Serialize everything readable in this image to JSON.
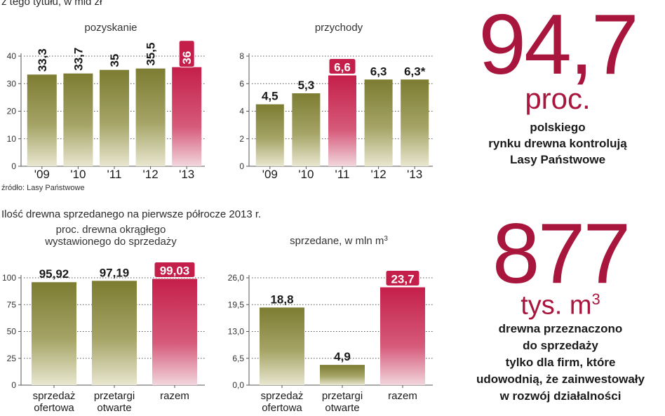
{
  "texts": {
    "top_line": "z tego tytułu, w mld zł",
    "source": "źródło: Lasy Państwowe",
    "section2": "Ilość drewna sprzedanego na pierwsze półrocze 2013 r."
  },
  "stats": [
    {
      "number": "94,7",
      "unit": "proc.",
      "lines": [
        "polskiego",
        "rynku drewna kontrolują",
        "Lasy Państwowe"
      ]
    },
    {
      "number": "877",
      "unit": "tys. m",
      "unit_sup": "3",
      "lines": [
        "drewna przeznaczono",
        "do sprzedaży",
        "tylko dla firm, które",
        "udowodnią, że zainwestowały",
        "w rozwój działalności"
      ]
    }
  ],
  "colors": {
    "green": "#8a8a3c",
    "highlight": "#c8204e",
    "accent_text": "#a8163e",
    "grid": "#555555"
  },
  "chart_data": [
    {
      "id": "pozyskanie",
      "type": "bar",
      "title": "pozyskanie",
      "categories": [
        "'09",
        "'10",
        "'11",
        "'12",
        "'13"
      ],
      "values": [
        33.3,
        33.7,
        35,
        35.5,
        36
      ],
      "labels": [
        "33,3",
        "33,7",
        "35",
        "35,5",
        "36"
      ],
      "highlight": [
        4
      ],
      "ylim": [
        0,
        40
      ],
      "yticks": [
        0,
        10,
        20,
        30,
        40
      ],
      "ytick_labels": [
        "0",
        "10",
        "20",
        "30",
        "40"
      ],
      "vertical_labels": true,
      "grid": true
    },
    {
      "id": "przychody",
      "type": "bar",
      "title": "przychody",
      "categories": [
        "'09",
        "'10",
        "'11",
        "'12",
        "'13"
      ],
      "values": [
        4.5,
        5.3,
        6.6,
        6.3,
        6.3
      ],
      "labels": [
        "4,5",
        "5,3",
        "6,6",
        "6,3",
        "6,3*"
      ],
      "highlight": [
        2
      ],
      "ylim": [
        0,
        8
      ],
      "yticks": [
        0,
        2,
        4,
        6,
        8
      ],
      "ytick_labels": [
        "0",
        "2",
        "4",
        "6",
        "8"
      ],
      "vertical_labels": false,
      "grid": true
    },
    {
      "id": "procent",
      "type": "bar",
      "title_lines": [
        "proc. drewna okrągłego",
        "wystawionego do sprzedaży"
      ],
      "categories": [
        [
          "sprzedaż",
          "ofertowa"
        ],
        [
          "przetargi",
          "otwarte"
        ],
        [
          "razem"
        ]
      ],
      "values": [
        95.92,
        97.19,
        99.03
      ],
      "labels": [
        "95,92",
        "97,19",
        "99,03"
      ],
      "highlight": [
        2
      ],
      "ylim": [
        0,
        100
      ],
      "yticks": [
        0,
        25,
        50,
        75,
        100
      ],
      "ytick_labels": [
        "0",
        "25",
        "50",
        "75",
        "100"
      ],
      "vertical_labels": false,
      "grid": true
    },
    {
      "id": "sprzedane",
      "type": "bar",
      "title": "sprzedane, w mln m",
      "title_sup": "3",
      "categories": [
        [
          "sprzedaż",
          "ofertowa"
        ],
        [
          "przetargi",
          "otwarte"
        ],
        [
          "razem"
        ]
      ],
      "values": [
        18.8,
        4.9,
        23.7
      ],
      "labels": [
        "18,8",
        "4,9",
        "23,7"
      ],
      "highlight": [
        2
      ],
      "ylim": [
        0,
        26
      ],
      "yticks": [
        0,
        6.5,
        13,
        19.5,
        26
      ],
      "ytick_labels": [
        "0,0",
        "6,5",
        "13,0",
        "19,5",
        "26,0"
      ],
      "vertical_labels": false,
      "grid": true
    }
  ]
}
